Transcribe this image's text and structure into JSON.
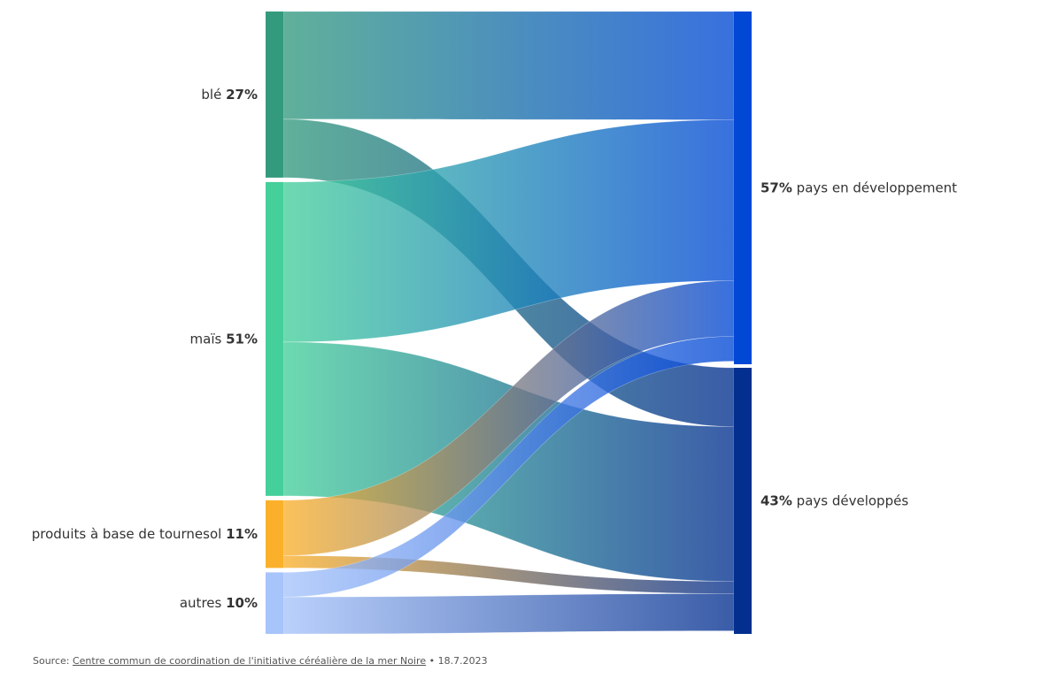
{
  "chart_data": {
    "type": "sankey",
    "sources": [
      {
        "id": "ble",
        "name": "blé",
        "value": 27,
        "pct_label": "27%",
        "color": "#339a7e"
      },
      {
        "id": "mais",
        "name": "maïs",
        "value": 51,
        "pct_label": "51%",
        "color": "#44cf9b"
      },
      {
        "id": "tournesol",
        "name": "produits à base de tournesol",
        "value": 11,
        "pct_label": "11%",
        "color": "#fbb02b"
      },
      {
        "id": "autres",
        "name": "autres",
        "value": 10,
        "pct_label": "10%",
        "color": "#a7c4fb"
      }
    ],
    "targets": [
      {
        "id": "dev",
        "name": "pays en développement",
        "value": 57,
        "pct_label": "57%",
        "color": "#0148d5"
      },
      {
        "id": "devd",
        "name": "pays développés",
        "value": 43,
        "pct_label": "43%",
        "color": "#032f8f"
      }
    ],
    "links": [
      {
        "source": "ble",
        "target": "dev",
        "value": 17.5
      },
      {
        "source": "ble",
        "target": "devd",
        "value": 9.5
      },
      {
        "source": "mais",
        "target": "dev",
        "value": 26
      },
      {
        "source": "mais",
        "target": "devd",
        "value": 25
      },
      {
        "source": "tournesol",
        "target": "dev",
        "value": 9
      },
      {
        "source": "tournesol",
        "target": "devd",
        "value": 2
      },
      {
        "source": "autres",
        "target": "dev",
        "value": 4
      },
      {
        "source": "autres",
        "target": "devd",
        "value": 6
      }
    ]
  },
  "source_note": {
    "prefix": "Source: ",
    "link_text": "Centre commun de coordination de l'initiative céréalière de la mer Noire",
    "suffix": " • 18.7.2023"
  }
}
